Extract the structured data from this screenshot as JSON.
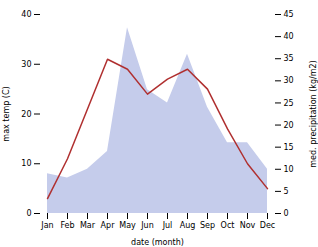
{
  "chart_data": {
    "type": "line",
    "xlabel": "date (month)",
    "ylabel": "max temp (C)",
    "y2label": "med. precipitation (kg/m2)",
    "categories": [
      "Jan",
      "Feb",
      "Mar",
      "Apr",
      "May",
      "Jun",
      "Jul",
      "Aug",
      "Sep",
      "Oct",
      "Nov",
      "Dec"
    ],
    "series": [
      {
        "type": "area",
        "color": "#c5cceb",
        "axis": "y2",
        "values": [
          9,
          8,
          10,
          14,
          42,
          28,
          25,
          36,
          24,
          16,
          16,
          10
        ]
      },
      {
        "type": "line",
        "color": "#b03030",
        "values": [
          3,
          11,
          21,
          31,
          29,
          24,
          27,
          29,
          25,
          17,
          10,
          5
        ]
      }
    ],
    "ylim": [
      0,
      40
    ],
    "yticks": [
      0,
      10,
      20,
      30,
      40
    ],
    "y2lim": [
      0,
      45
    ],
    "y2ticks": [
      0,
      5,
      10,
      15,
      20,
      25,
      30,
      35,
      40,
      45
    ],
    "grid": false
  }
}
